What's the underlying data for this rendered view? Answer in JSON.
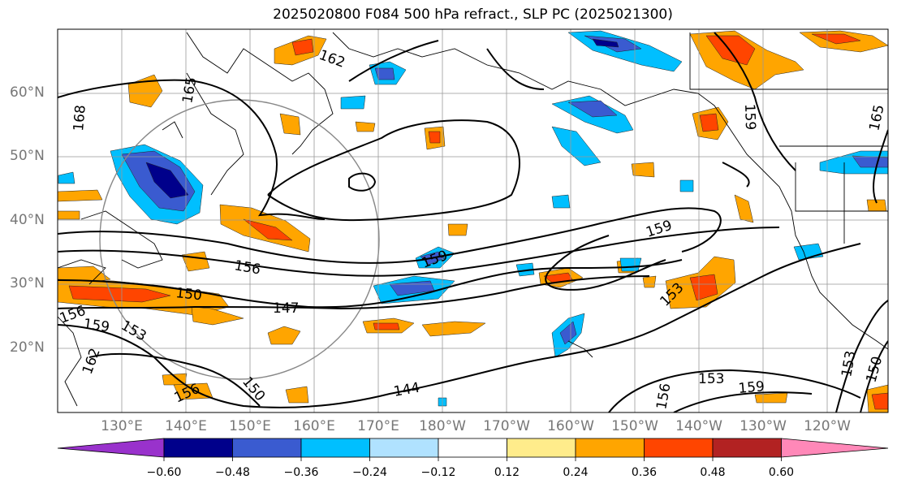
{
  "title": "2025020800 F084 500 hPa refract., SLP PC (2025021300)",
  "lat_labels": [
    "60°N",
    "50°N",
    "40°N",
    "30°N",
    "20°N"
  ],
  "lon_labels": [
    "130°E",
    "140°E",
    "150°E",
    "160°E",
    "170°E",
    "180°W",
    "170°W",
    "160°W",
    "150°W",
    "140°W",
    "130°W",
    "120°W"
  ],
  "contour_labels": [
    "162",
    "165",
    "168",
    "159",
    "156",
    "150",
    "147",
    "159",
    "159",
    "153",
    "144",
    "153",
    "159",
    "156",
    "153",
    "150",
    "165",
    "159",
    "156",
    "153",
    "162",
    "150",
    "156"
  ],
  "colorbar": {
    "ticks": [
      "−0.60",
      "−0.48",
      "−0.36",
      "−0.24",
      "−0.12",
      "0.12",
      "0.24",
      "0.36",
      "0.48",
      "0.60"
    ],
    "colors": [
      "#9932cc",
      "#00008b",
      "#3a5bd0",
      "#00bfff",
      "#b0e2ff",
      "#ffffff",
      "#ffec8b",
      "#ffa500",
      "#ff4500",
      "#b22222",
      "#ff88b8"
    ]
  }
}
